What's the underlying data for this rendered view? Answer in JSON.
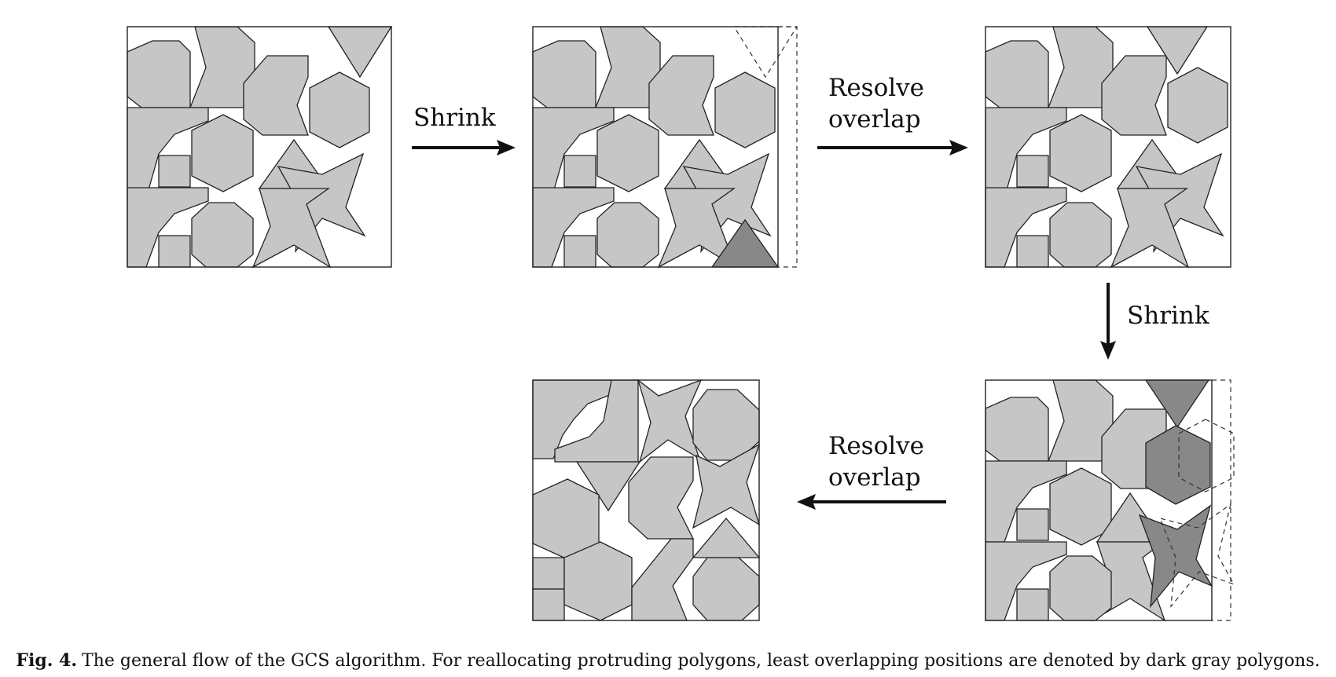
{
  "labels": {
    "shrink_1": "Shrink",
    "resolve_1_line1": "Resolve",
    "resolve_1_line2": "overlap",
    "shrink_2": "Shrink",
    "resolve_2_line1": "Resolve",
    "resolve_2_line2": "overlap"
  },
  "caption": {
    "label": "Fig. 4.",
    "text": "The general flow of the GCS algorithm. For reallocating protruding polygons, least overlapping positions are denoted by dark gray polygons."
  },
  "colors": {
    "polygon_light": "#c6c6c6",
    "polygon_dark": "#888888",
    "outline": "#222222",
    "arrow": "#111111"
  },
  "panels": [
    {
      "name": "initial-layout",
      "overflow": "none"
    },
    {
      "name": "after-shrink-1",
      "overflow": "one triangle protrudes",
      "highlighted": [
        "triangle"
      ]
    },
    {
      "name": "after-resolve-1",
      "overflow": "none"
    },
    {
      "name": "after-shrink-2",
      "overflow": "three polygons protrude",
      "highlighted": [
        "triangle",
        "hexagon",
        "star"
      ]
    },
    {
      "name": "after-resolve-2",
      "overflow": "none"
    }
  ]
}
